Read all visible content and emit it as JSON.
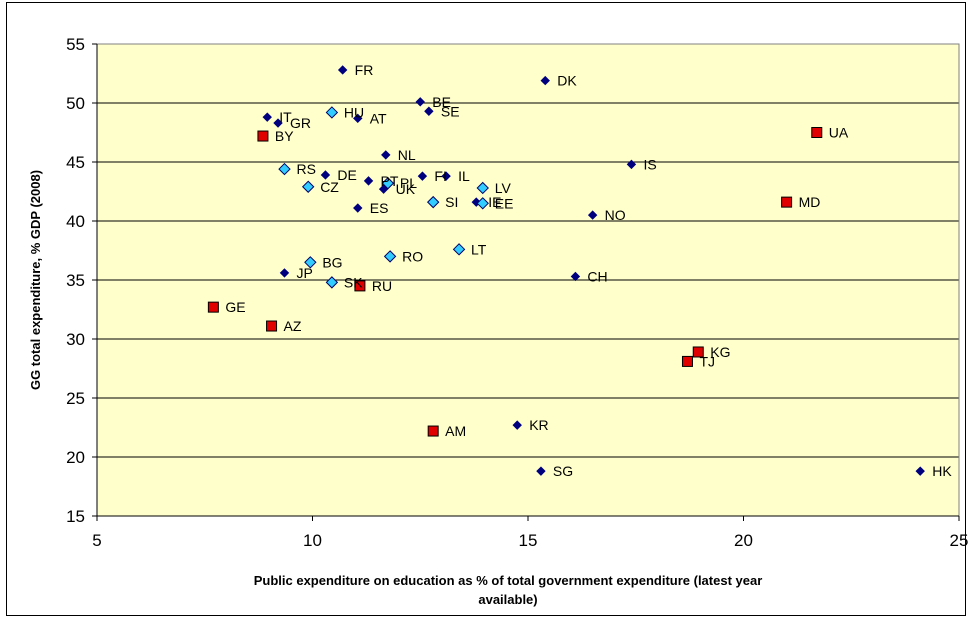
{
  "chart_data": {
    "type": "scatter",
    "xlabel_lines": [
      "Public expenditure on education as % of total government expenditure (latest year",
      "available)"
    ],
    "ylabel": "GG total expenditure, % GDP (2008)",
    "xlim": [
      5,
      25
    ],
    "ylim": [
      15,
      55
    ],
    "x_ticks": [
      5,
      10,
      15,
      20,
      25
    ],
    "y_ticks": [
      15,
      20,
      25,
      30,
      35,
      40,
      45,
      50,
      55
    ],
    "plot_background": "#FFFFCC",
    "grid": true,
    "legend": "none",
    "series": [
      {
        "marker": "diamond",
        "color": "#00007F",
        "points": [
          {
            "label": "FR",
            "x": 10.7,
            "y": 52.8
          },
          {
            "label": "DK",
            "x": 15.4,
            "y": 51.9
          },
          {
            "label": "BE",
            "x": 12.5,
            "y": 50.1
          },
          {
            "label": "SE",
            "x": 12.7,
            "y": 49.3
          },
          {
            "label": "IT",
            "x": 8.95,
            "y": 48.8
          },
          {
            "label": "GR",
            "x": 9.2,
            "y": 48.3
          },
          {
            "label": "AT",
            "x": 11.05,
            "y": 48.7
          },
          {
            "label": "NL",
            "x": 11.7,
            "y": 45.6
          },
          {
            "label": "IS",
            "x": 17.4,
            "y": 44.8
          },
          {
            "label": "DE",
            "x": 10.3,
            "y": 43.9
          },
          {
            "label": "PT",
            "x": 11.3,
            "y": 43.4
          },
          {
            "label": "FI",
            "x": 12.55,
            "y": 43.8
          },
          {
            "label": "IL",
            "x": 13.1,
            "y": 43.8
          },
          {
            "label": "UK",
            "x": 11.65,
            "y": 42.7
          },
          {
            "label": "IE",
            "x": 13.8,
            "y": 41.6
          },
          {
            "label": "ES",
            "x": 11.05,
            "y": 41.1
          },
          {
            "label": "NO",
            "x": 16.5,
            "y": 40.5
          },
          {
            "label": "JP",
            "x": 9.35,
            "y": 35.6
          },
          {
            "label": "CH",
            "x": 16.1,
            "y": 35.3
          },
          {
            "label": "KR",
            "x": 14.75,
            "y": 22.7
          },
          {
            "label": "SG",
            "x": 15.3,
            "y": 18.8
          },
          {
            "label": "HK",
            "x": 24.1,
            "y": 18.8
          }
        ]
      },
      {
        "marker": "diamond",
        "color": "#33CCFF",
        "points": [
          {
            "label": "HU",
            "x": 10.45,
            "y": 49.2
          },
          {
            "label": "RS",
            "x": 9.35,
            "y": 44.4
          },
          {
            "label": "CZ",
            "x": 9.9,
            "y": 42.9
          },
          {
            "label": "PL",
            "x": 11.75,
            "y": 43.2
          },
          {
            "label": "LV",
            "x": 13.95,
            "y": 42.8
          },
          {
            "label": "SI",
            "x": 12.8,
            "y": 41.6
          },
          {
            "label": "EE",
            "x": 13.95,
            "y": 41.5
          },
          {
            "label": "LT",
            "x": 13.4,
            "y": 37.6
          },
          {
            "label": "RO",
            "x": 11.8,
            "y": 37.0
          },
          {
            "label": "BG",
            "x": 9.95,
            "y": 36.5
          },
          {
            "label": "SK",
            "x": 10.45,
            "y": 34.8
          }
        ]
      },
      {
        "marker": "square",
        "color": "#E00000",
        "points": [
          {
            "label": "BY",
            "x": 8.85,
            "y": 47.2
          },
          {
            "label": "UA",
            "x": 21.7,
            "y": 47.5
          },
          {
            "label": "MD",
            "x": 21.0,
            "y": 41.6
          },
          {
            "label": "RU",
            "x": 11.1,
            "y": 34.5
          },
          {
            "label": "GE",
            "x": 7.7,
            "y": 32.7
          },
          {
            "label": "AZ",
            "x": 9.05,
            "y": 31.1
          },
          {
            "label": "KG",
            "x": 18.95,
            "y": 28.9
          },
          {
            "label": "TJ",
            "x": 18.7,
            "y": 28.1
          },
          {
            "label": "AM",
            "x": 12.8,
            "y": 22.2
          }
        ]
      }
    ]
  }
}
